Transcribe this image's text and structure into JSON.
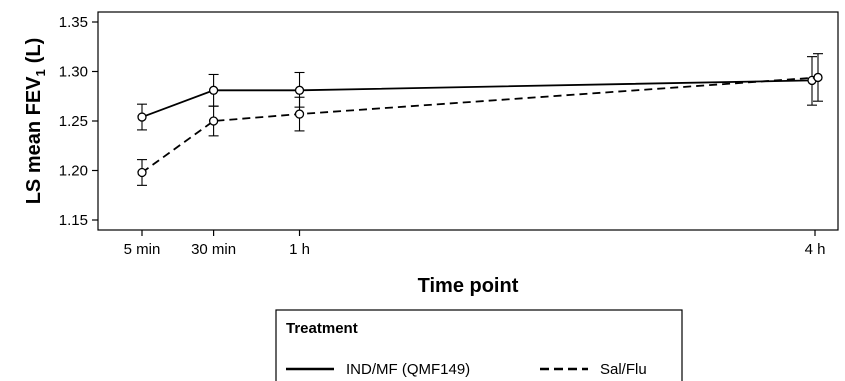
{
  "chart_data": {
    "type": "line",
    "xlabel": "Time point",
    "ylabel": "LS mean FEV",
    "ylabel_subscript": "1",
    "ylabel_unit": "(L)",
    "categories": [
      "5 min",
      "30 min",
      "1 h",
      "4 h"
    ],
    "x_hours": [
      0.0833,
      0.5,
      1,
      4
    ],
    "ylim": [
      1.15,
      1.35
    ],
    "yticks": [
      "1.15",
      "1.20",
      "1.25",
      "1.30",
      "1.35"
    ],
    "grid": false,
    "legend_title": "Treatment",
    "legend_position": "bottom",
    "series": [
      {
        "name": "IND/MF (QMF149)",
        "line_style": "solid",
        "values": [
          1.254,
          1.281,
          1.281,
          1.291
        ],
        "ci_low": [
          1.241,
          1.265,
          1.264,
          1.266
        ],
        "ci_high": [
          1.267,
          1.297,
          1.299,
          1.315
        ]
      },
      {
        "name": "Sal/Flu",
        "line_style": "dashed",
        "values": [
          1.198,
          1.25,
          1.257,
          1.294
        ],
        "ci_low": [
          1.185,
          1.235,
          1.24,
          1.27
        ],
        "ci_high": [
          1.211,
          1.265,
          1.274,
          1.318
        ]
      }
    ]
  }
}
